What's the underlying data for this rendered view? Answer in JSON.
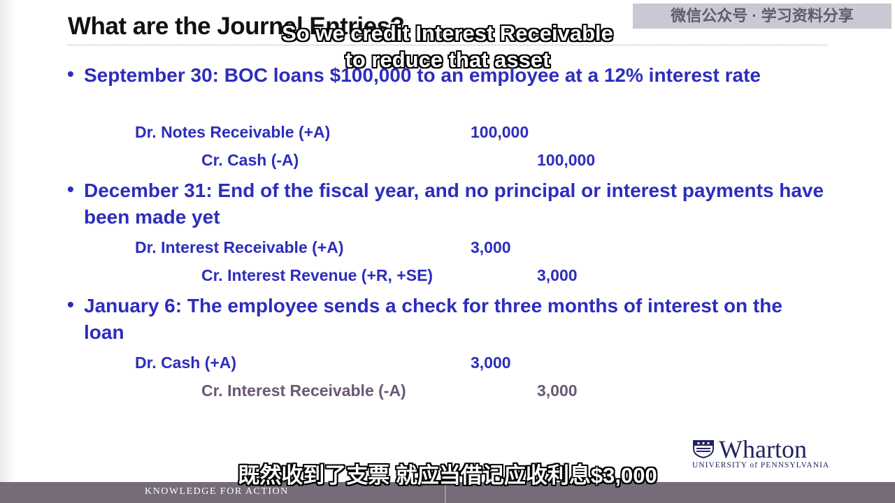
{
  "slide": {
    "title": "What are the Journal Entries?",
    "watermark": "微信公众号 · 学习资料分享"
  },
  "subtitles": {
    "top_line1": "So we credit Interest Receivable",
    "top_line2": "to reduce that asset",
    "bottom": "既然收到了支票 就应当借记应收利息$3,000"
  },
  "bullets": [
    {
      "marker": "•",
      "text": "September 30: BOC loans $100,000 to an employee at a 12% interest rate",
      "entries": [
        {
          "account": "Dr. Notes Receivable (+A)",
          "amount": "100,000"
        },
        {
          "account": "Cr. Cash (-A)",
          "amount": "100,000"
        }
      ]
    },
    {
      "marker": "•",
      "text": "December 31: End of the fiscal year, and no principal or interest payments have been made yet",
      "entries": [
        {
          "account": "Dr. Interest Receivable (+A)",
          "amount": "3,000"
        },
        {
          "account": "Cr. Interest Revenue (+R, +SE)",
          "amount": "3,000"
        }
      ]
    },
    {
      "marker": "•",
      "text": "January 6: The employee sends a check for three months of interest on the loan",
      "entries": [
        {
          "account": "Dr. Cash (+A)",
          "amount": "3,000"
        },
        {
          "account": "Cr. Interest Receivable (-A)",
          "amount": "3,000"
        }
      ]
    }
  ],
  "logo": {
    "name": "Wharton",
    "subtitle": "UNIVERSITY of PENNSYLVANIA"
  },
  "footer": {
    "tagline": "KNOWLEDGE FOR ACTION"
  },
  "colors": {
    "body_text": "#2d2dbd",
    "muted_text": "#6a5874",
    "footer_bar": "#766b79",
    "logo": "#22235f"
  }
}
